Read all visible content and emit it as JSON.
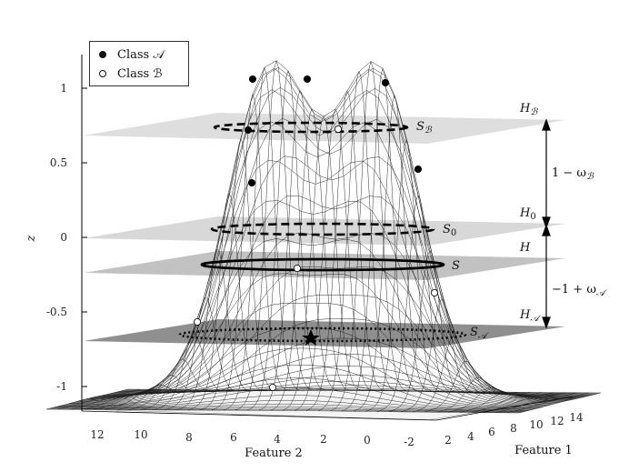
{
  "z_axis": {
    "label": "z",
    "ticks": [
      "1",
      "0.5",
      "0",
      "-0.5",
      "-1"
    ]
  },
  "feature2_axis": {
    "label": "Feature 2",
    "ticks": [
      "12",
      "10",
      "8",
      "6",
      "4",
      "2",
      "0",
      "-2"
    ]
  },
  "feature1_axis": {
    "label": "Feature 1",
    "ticks": [
      "2",
      "4",
      "6",
      "8",
      "10",
      "12",
      "14"
    ]
  },
  "legend": {
    "class_a": "Class 𝒜",
    "class_b": "Class ℬ"
  },
  "planes": {
    "hb": "H",
    "hb_sub": "ℬ",
    "h0": "H",
    "h0_sub": "0",
    "h": "H",
    "ha": "H",
    "ha_sub": "𝒜"
  },
  "level_sets": {
    "sb": "S",
    "sb_sub": "ℬ",
    "s0": "S",
    "s0_sub": "0",
    "s": "S",
    "sa": "S",
    "sa_sub": "𝒜"
  },
  "intervals": {
    "upper": "1 − ω",
    "upper_sub": "ℬ",
    "lower": "−1 + ω",
    "lower_sub": "𝒜"
  },
  "colors": {
    "plane_light": "#d9d9d9",
    "plane_mid": "#c6c6c6",
    "plane_dark": "#8e8e8e",
    "mesh": "#1a1a1a"
  }
}
